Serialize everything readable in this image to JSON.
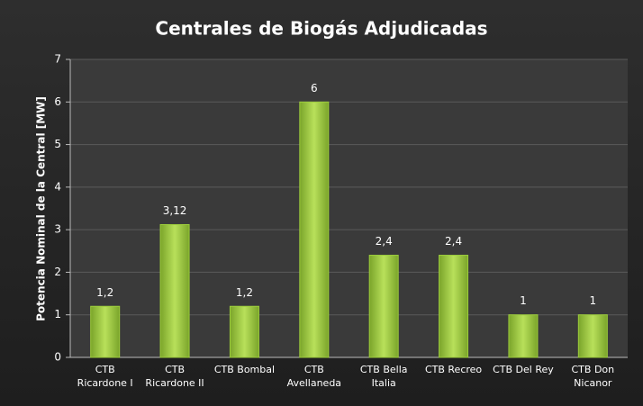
{
  "chart_data": {
    "type": "bar",
    "title": "Centrales de Biogás Adjudicadas",
    "y_label": "Potencia Nominal de la Central [MW]",
    "categories": [
      "CTB Ricardone I",
      "CTB Ricardone II",
      "CTB Bombal",
      "CTB Avellaneda",
      "CTB Bella Italia",
      "CTB Recreo",
      "CTB Del Rey",
      "CTB Don Nicanor"
    ],
    "values": [
      1.2,
      3.12,
      1.2,
      6,
      2.4,
      2.4,
      1,
      1
    ],
    "value_labels": [
      "1,2",
      "3,12",
      "1,2",
      "6",
      "2,4",
      "2,4",
      "1",
      "1"
    ],
    "color": "#9ccc3c",
    "ylim": [
      0,
      7
    ],
    "yticks": [
      0,
      1,
      2,
      3,
      4,
      5,
      6,
      7
    ],
    "grid": true
  }
}
